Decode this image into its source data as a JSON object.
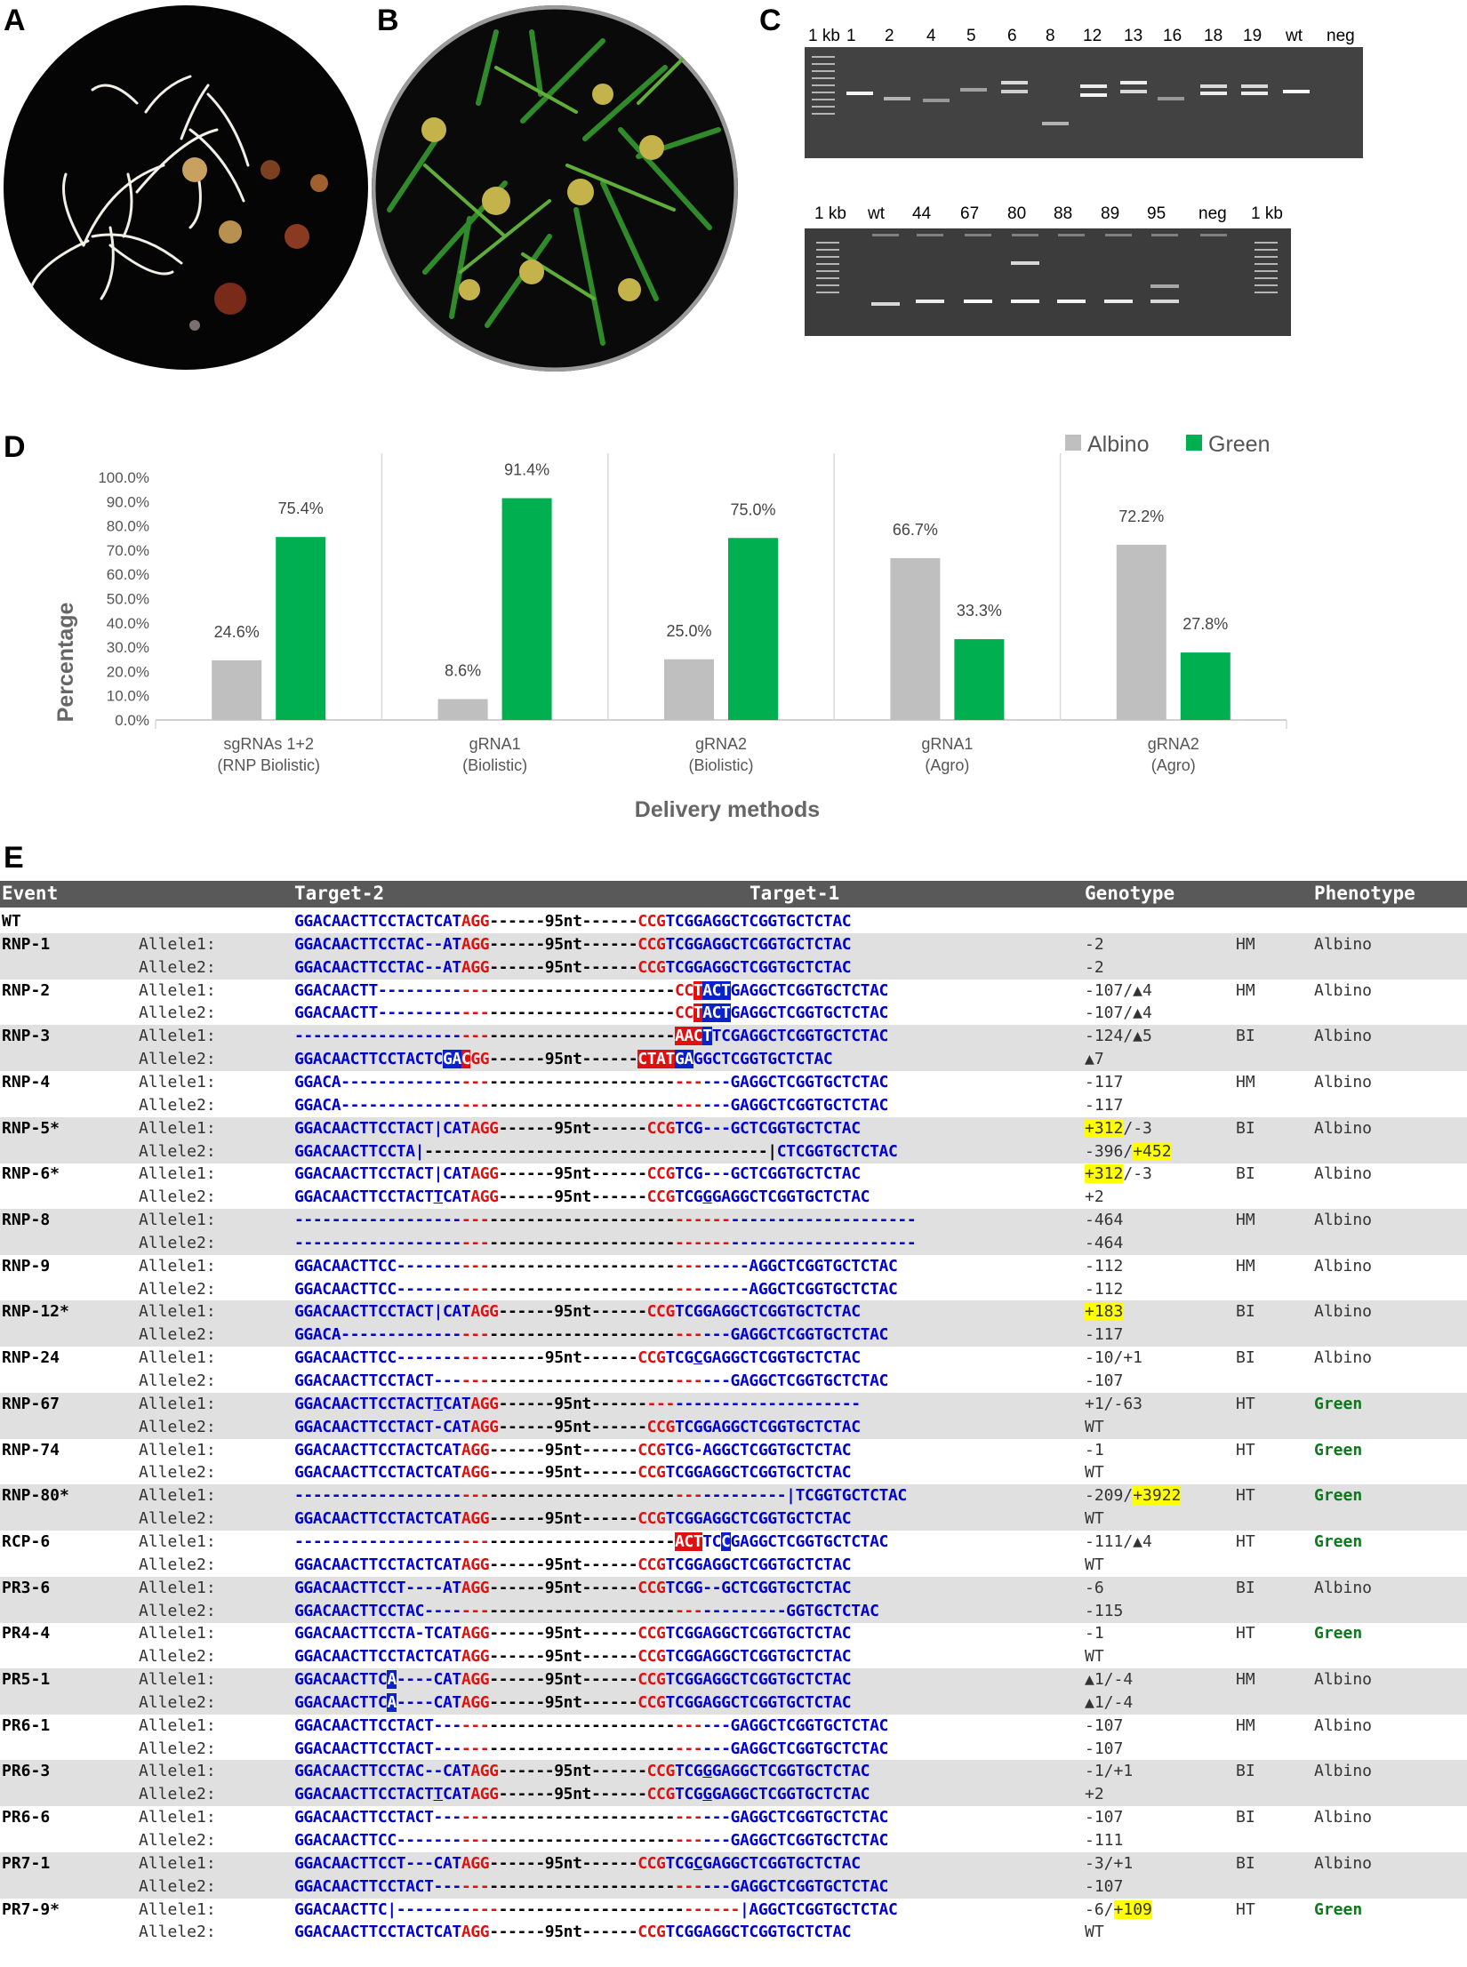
{
  "panels": {
    "a": "A",
    "b": "B",
    "c": "C",
    "d": "D",
    "e": "E"
  },
  "gel": {
    "top_lanes": [
      "1 kb",
      "1",
      "2",
      "4",
      "5",
      "6",
      "8",
      "12",
      "13",
      "16",
      "18",
      "19",
      "wt",
      "neg"
    ],
    "bottom_lanes": [
      "1 kb",
      "wt",
      "44",
      "67",
      "80",
      "88",
      "89",
      "95",
      "neg",
      "1 kb"
    ]
  },
  "chart_data": {
    "type": "bar",
    "title": "",
    "xlabel": "Delivery methods",
    "ylabel": "Percentage",
    "ylim": [
      0,
      100
    ],
    "yticks": [
      "0.0%",
      "10.0%",
      "20.0%",
      "30.0%",
      "40.0%",
      "50.0%",
      "60.0%",
      "70.0%",
      "80.0%",
      "90.0%",
      "100.0%"
    ],
    "categories": [
      [
        "sgRNAs 1+2",
        "(RNP Biolistic)"
      ],
      [
        "gRNA1",
        "(Biolistic)"
      ],
      [
        "gRNA2",
        "(Biolistic)"
      ],
      [
        "gRNA1",
        "(Agro)"
      ],
      [
        "gRNA2",
        "(Agro)"
      ]
    ],
    "series": [
      {
        "name": "Albino",
        "color": "#bfbfbf",
        "values": [
          24.6,
          8.6,
          25.0,
          66.7,
          72.2
        ],
        "labels": [
          "24.6%",
          "8.6%",
          "25.0%",
          "66.7%",
          "72.2%"
        ]
      },
      {
        "name": "Green",
        "color": "#00b050",
        "values": [
          75.4,
          91.4,
          75.0,
          33.3,
          27.8
        ],
        "labels": [
          "75.4%",
          "91.4%",
          "75.0%",
          "33.3%",
          "27.8%"
        ]
      }
    ],
    "legend": "top-right",
    "grid": false
  },
  "table": {
    "headers": {
      "event": "Event",
      "target2": "Target-2",
      "target1": "Target-1",
      "genotype": "Genotype",
      "phenotype": "Phenotype"
    },
    "rows": [
      {
        "event": "WT",
        "allele": "",
        "seq": "{b}GGACAACTTCCTACTCAT{r}AGG{k}------95nt------{r}CCG{b}TCGGAGGCTCGGTGCTCTAC",
        "genotype": "",
        "zyg": "",
        "phenotype": "",
        "shade": false
      },
      {
        "event": "RNP-1",
        "allele": "Allele1:",
        "seq": "{b}GGACAACTTCCTAC--AT{r}AGG{k}------95nt------{r}CCG{b}TCGGAGGCTCGGTGCTCTAC",
        "genotype": "-2",
        "zyg": "HM",
        "phenotype": "Albino",
        "shade": true
      },
      {
        "event": "",
        "allele": "Allele2:",
        "seq": "{b}GGACAACTTCCTAC--AT{r}AGG{k}------95nt------{r}CCG{b}TCGGAGGCTCGGTGCTCTAC",
        "genotype": "-2",
        "zyg": "",
        "phenotype": "",
        "shade": true
      },
      {
        "event": "RNP-2",
        "allele": "Allele1:",
        "seq": "{b}GGACAACTT---------{r}---{k}--------------------{r}CC{hr}T{hb}ACT{b}GAGGCTCGGTGCTCTAC",
        "genotype": "-107/▲4",
        "zyg": "HM",
        "phenotype": "Albino",
        "shade": false
      },
      {
        "event": "",
        "allele": "Allele2:",
        "seq": "{b}GGACAACTT---------{r}---{k}--------------------{r}CC{hr}T{hb}ACT{b}GAGGCTCGGTGCTCTAC",
        "genotype": "-107/▲4",
        "zyg": "",
        "phenotype": "",
        "shade": false
      },
      {
        "event": "RNP-3",
        "allele": "Allele1:",
        "seq": "{b}------------------{r}---{k}--------------------{hr}AAC{hb}T{b}TC{b}GAGGCTCGGTGCTCTAC",
        "genotype": "-124/▲5",
        "zyg": "BI",
        "phenotype": "Albino",
        "shade": true
      },
      {
        "event": "",
        "allele": "Allele2:",
        "seq": "{b}GGACAACTTCCTACTC{hb}GA{hr}C{r}GG{k}------95nt------{hr}CTAT{hb}GA{b}GGCTCGGTGCTCTAC",
        "genotype": "▲7",
        "zyg": "",
        "phenotype": "",
        "shade": true
      },
      {
        "event": "RNP-4",
        "allele": "Allele1:",
        "seq": "{b}GGACA-------------{r}---{k}--------------------{r}---{b}---GAGGCTCGGTGCTCTAC",
        "genotype": "-117",
        "zyg": "HM",
        "phenotype": "Albino",
        "shade": false
      },
      {
        "event": "",
        "allele": "Allele2:",
        "seq": "{b}GGACA-------------{r}---{k}--------------------{r}---{b}---GAGGCTCGGTGCTCTAC",
        "genotype": "-117",
        "zyg": "",
        "phenotype": "",
        "shade": false
      },
      {
        "event": "RNP-5*",
        "allele": "Allele1:",
        "seq": "{b}GGACAACTTCCTACT|CAT{r}AGG{k}------95nt------{r}CCG{b}TCG---GCTCGGTGCTCTAC",
        "genotype": "{y}+312{n}/-3",
        "zyg": "BI",
        "phenotype": "Albino",
        "shade": true
      },
      {
        "event": "",
        "allele": "Allele2:",
        "seq": "{b}GGACAACTTCCTA|{k}-------------------------------------|{b}CTCGGTGCTCTAC",
        "genotype": "-396/{y}+452",
        "zyg": "",
        "phenotype": "",
        "shade": true
      },
      {
        "event": "RNP-6*",
        "allele": "Allele1:",
        "seq": "{b}GGACAACTTCCTACT|CAT{r}AGG{k}------95nt------{r}CCG{b}TCG---GCTCGGTGCTCTAC",
        "genotype": "{y}+312{n}/-3",
        "zyg": "BI",
        "phenotype": "Albino",
        "shade": false
      },
      {
        "event": "",
        "allele": "Allele2:",
        "seq": "{b}GGACAACTTCCTACT{u}T{b}CAT{r}AGG{k}------95nt------{r}CCG{b}TCG{u}G{b}GAGGCTCGGTGCTCTAC",
        "genotype": "+2",
        "zyg": "",
        "phenotype": "",
        "shade": false
      },
      {
        "event": "RNP-8",
        "allele": "Allele1:",
        "seq": "{b}------------------{r}---{k}--------------------{r}------{b}--------------------",
        "genotype": "-464",
        "zyg": "HM",
        "phenotype": "Albino",
        "shade": true
      },
      {
        "event": "",
        "allele": "Allele2:",
        "seq": "{b}------------------{r}---{k}--------------------{r}------{b}--------------------",
        "genotype": "-464",
        "zyg": "",
        "phenotype": "",
        "shade": true
      },
      {
        "event": "RNP-9",
        "allele": "Allele1:",
        "seq": "{b}GGACAACTTCC-------{r}---{k}--------------------{r}---{b}-----AGGCTCGGTGCTCTAC",
        "genotype": "-112",
        "zyg": "HM",
        "phenotype": "Albino",
        "shade": false
      },
      {
        "event": "",
        "allele": "Allele2:",
        "seq": "{b}GGACAACTTCC-------{r}---{k}--------------------{r}---{b}-----AGGCTCGGTGCTCTAC",
        "genotype": "-112",
        "zyg": "",
        "phenotype": "",
        "shade": false
      },
      {
        "event": "RNP-12*",
        "allele": "Allele1:",
        "seq": "{b}GGACAACTTCCTACT|CAT{r}AGG{k}------95nt------{r}CCG{b}TCGGAGGCTCGGTGCTCTAC",
        "genotype": "{y}+183",
        "zyg": "BI",
        "phenotype": "Albino",
        "shade": true
      },
      {
        "event": "",
        "allele": "Allele2:",
        "seq": "{b}GGACA-------------{r}---{k}--------------------{r}---{b}---GAGGCTCGGTGCTCTAC",
        "genotype": "-117",
        "zyg": "",
        "phenotype": "",
        "shade": true
      },
      {
        "event": "RNP-24",
        "allele": "Allele1:",
        "seq": "{b}GGACAACTTCC-------{r}---{k}------95nt------{r}CCG{b}TCG{u}C{b}GAGGCTCGGTGCTCTAC",
        "genotype": "-10/+1",
        "zyg": "BI",
        "phenotype": "Albino",
        "shade": false
      },
      {
        "event": "",
        "allele": "Allele2:",
        "seq": "{b}GGACAACTTCCTACT---{r}---{k}--------------------{r}---{b}---GAGGCTCGGTGCTCTAC",
        "genotype": "-107",
        "zyg": "",
        "phenotype": "",
        "shade": false
      },
      {
        "event": "RNP-67",
        "allele": "Allele1:",
        "seq": "{b}GGACAACTTCCTACT{u}T{b}CAT{r}AGG{k}------95nt------{r}---{b}--------------------",
        "genotype": "+1/-63",
        "zyg": "HT",
        "phenotype": "Green",
        "shade": true
      },
      {
        "event": "",
        "allele": "Allele2:",
        "seq": "{b}GGACAACTTCCTACT-CAT{r}AGG{k}------95nt------{r}CCG{b}TCGGAGGCTCGGTGCTCTAC",
        "genotype": "WT",
        "zyg": "",
        "phenotype": "",
        "shade": true
      },
      {
        "event": "RNP-74",
        "allele": "Allele1:",
        "seq": "{b}GGACAACTTCCTACTCAT{r}AGG{k}------95nt------{r}CCG{b}TCG-AGGCTCGGTGCTCTAC",
        "genotype": "-1",
        "zyg": "HT",
        "phenotype": "Green",
        "shade": false
      },
      {
        "event": "",
        "allele": "Allele2:",
        "seq": "{b}GGACAACTTCCTACTCAT{r}AGG{k}------95nt------{r}CCG{b}TCGGAGGCTCGGTGCTCTAC",
        "genotype": "WT",
        "zyg": "",
        "phenotype": "",
        "shade": false
      },
      {
        "event": "RNP-80*",
        "allele": "Allele1:",
        "seq": "{b}------------------{r}---{k}--------------------{r}---{b}---------|TCGGTGCTCTAC",
        "genotype": "-209/{y}+3922",
        "zyg": "HT",
        "phenotype": "Green",
        "shade": true
      },
      {
        "event": "",
        "allele": "Allele2:",
        "seq": "{b}GGACAACTTCCTACTCAT{r}AGG{k}------95nt------{r}CCG{b}TCGGAGGCTCGGTGCTCTAC",
        "genotype": "WT",
        "zyg": "",
        "phenotype": "",
        "shade": true
      },
      {
        "event": "RCP-6",
        "allele": "Allele1:",
        "seq": "{b}------------------{r}---{k}--------------------{hr}ACT{b}TC{hb}C{b}GAGGCTCGGTGCTCTAC",
        "genotype": "-111/▲4",
        "zyg": "HT",
        "phenotype": "Green",
        "shade": false
      },
      {
        "event": "",
        "allele": "Allele2:",
        "seq": "{b}GGACAACTTCCTACTCAT{r}AGG{k}------95nt------{r}CCG{b}TCGGAGGCTCGGTGCTCTAC",
        "genotype": "WT",
        "zyg": "",
        "phenotype": "",
        "shade": false
      },
      {
        "event": "PR3-6",
        "allele": "Allele1:",
        "seq": "{b}GGACAACTTCCT----AT{r}AGG{k}------95nt------{r}CCG{b}TCGG--GCTCGGTGCTCTAC",
        "genotype": "-6",
        "zyg": "BI",
        "phenotype": "Albino",
        "shade": true
      },
      {
        "event": "",
        "allele": "Allele2:",
        "seq": "{b}GGACAACTTCCTAC----{r}---{k}--------------------{r}---{b}---------GGTGCTCTAC",
        "genotype": "-115",
        "zyg": "",
        "phenotype": "",
        "shade": true
      },
      {
        "event": "PR4-4",
        "allele": "Allele1:",
        "seq": "{b}GGACAACTTCCTA-TCAT{r}AGG{k}------95nt------{r}CCG{b}TCGGAGGCTCGGTGCTCTAC",
        "genotype": "-1",
        "zyg": "HT",
        "phenotype": "Green",
        "shade": false
      },
      {
        "event": "",
        "allele": "Allele2:",
        "seq": "{b}GGACAACTTCCTACTCAT{r}AGG{k}------95nt------{r}CCG{b}TCGGAGGCTCGGTGCTCTAC",
        "genotype": "WT",
        "zyg": "",
        "phenotype": "",
        "shade": false
      },
      {
        "event": "PR5-1",
        "allele": "Allele1:",
        "seq": "{b}GGACAACTTC{hb}A{b}----CAT{r}AGG{k}------95nt------{r}CCG{b}TCGGAGGCTCGGTGCTCTAC",
        "genotype": "▲1/-4",
        "zyg": "HM",
        "phenotype": "Albino",
        "shade": true
      },
      {
        "event": "",
        "allele": "Allele2:",
        "seq": "{b}GGACAACTTC{hb}A{b}----CAT{r}AGG{k}------95nt------{r}CCG{b}TCGGAGGCTCGGTGCTCTAC",
        "genotype": "▲1/-4",
        "zyg": "",
        "phenotype": "",
        "shade": true
      },
      {
        "event": "PR6-1",
        "allele": "Allele1:",
        "seq": "{b}GGACAACTTCCTACT---{r}---{k}--------------------{r}---{b}---GAGGCTCGGTGCTCTAC",
        "genotype": "-107",
        "zyg": "HM",
        "phenotype": "Albino",
        "shade": false
      },
      {
        "event": "",
        "allele": "Allele2:",
        "seq": "{b}GGACAACTTCCTACT---{r}---{k}--------------------{r}---{b}---GAGGCTCGGTGCTCTAC",
        "genotype": "-107",
        "zyg": "",
        "phenotype": "",
        "shade": false
      },
      {
        "event": "PR6-3",
        "allele": "Allele1:",
        "seq": "{b}GGACAACTTCCTAC--CAT{r}AGG{k}------95nt------{r}CCG{b}TCG{u}G{b}GAGGCTCGGTGCTCTAC",
        "genotype": "-1/+1",
        "zyg": "BI",
        "phenotype": "Albino",
        "shade": true
      },
      {
        "event": "",
        "allele": "Allele2:",
        "seq": "{b}GGACAACTTCCTACT{u}T{b}CAT{r}AGG{k}------95nt------{r}CCG{b}TCG{u}G{b}GAGGCTCGGTGCTCTAC",
        "genotype": "+2",
        "zyg": "",
        "phenotype": "",
        "shade": true
      },
      {
        "event": "PR6-6",
        "allele": "Allele1:",
        "seq": "{b}GGACAACTTCCTACT---{r}---{k}--------------------{r}---{b}---GAGGCTCGGTGCTCTAC",
        "genotype": "-107",
        "zyg": "BI",
        "phenotype": "Albino",
        "shade": false
      },
      {
        "event": "",
        "allele": "Allele2:",
        "seq": "{b}GGACAACTTCC-------{r}---{k}--------------------{r}---{b}---GAGGCTCGGTGCTCTAC",
        "genotype": "-111",
        "zyg": "",
        "phenotype": "",
        "shade": false
      },
      {
        "event": "PR7-1",
        "allele": "Allele1:",
        "seq": "{b}GGACAACTTCCT---CAT{r}AGG{k}------95nt------{r}CCG{b}TCG{u}C{b}GAGGCTCGGTGCTCTAC",
        "genotype": "-3/+1",
        "zyg": "BI",
        "phenotype": "Albino",
        "shade": true
      },
      {
        "event": "",
        "allele": "Allele2:",
        "seq": "{b}GGACAACTTCCTACT---{r}---{k}--------------------{r}---{b}---GAGGCTCGGTGCTCTAC",
        "genotype": "-107",
        "zyg": "",
        "phenotype": "",
        "shade": true
      },
      {
        "event": "PR7-9*",
        "allele": "Allele1:",
        "seq": "{b}GGACAACTTC|--------{r}---{k}--------------------{r}------{b}|AGGCTCGGTGCTCTAC",
        "genotype": "-6/{y}+109",
        "zyg": "HT",
        "phenotype": "Green",
        "shade": false
      },
      {
        "event": "",
        "allele": "Allele2:",
        "seq": "{b}GGACAACTTCCTACTCAT{r}AGG{k}------95nt------{r}CCG{b}TCGGAGGCTCGGTGCTCTAC",
        "genotype": "WT",
        "zyg": "",
        "phenotype": "",
        "shade": false
      }
    ]
  }
}
